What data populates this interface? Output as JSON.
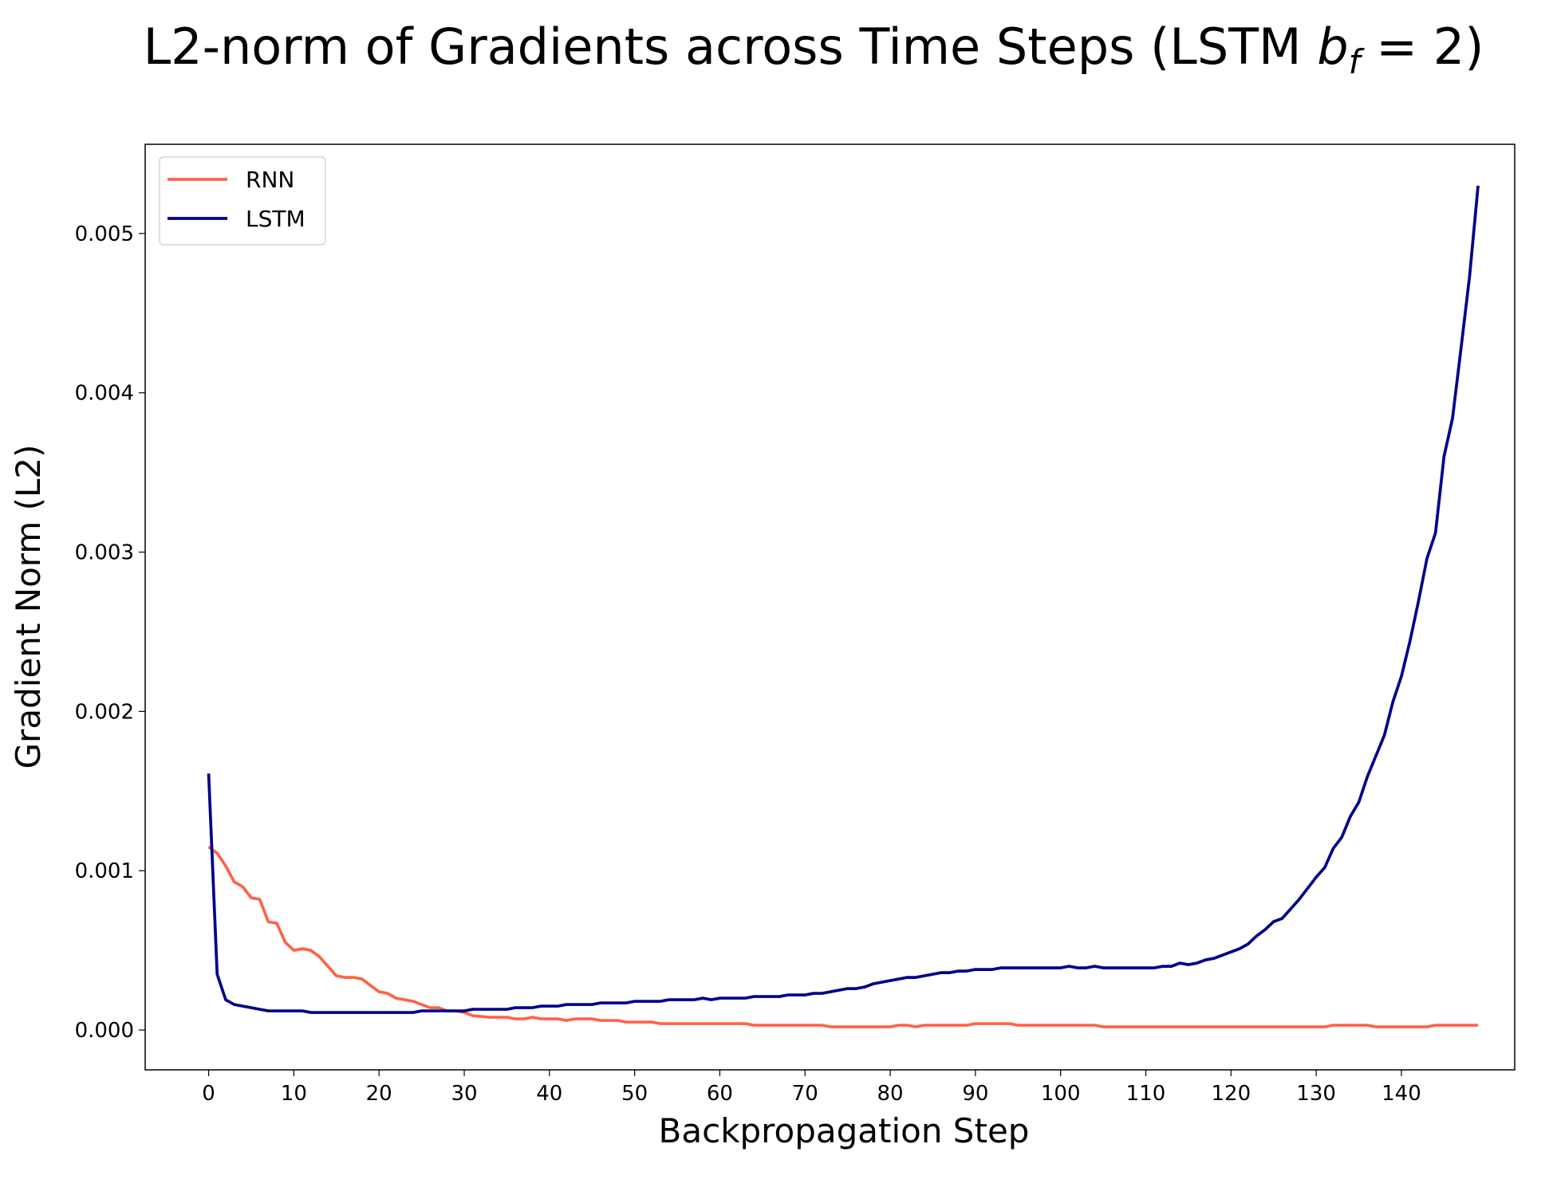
{
  "chart_data": {
    "type": "line",
    "title": [
      "L2-norm of Gradients across Time Steps (LSTM ",
      "b",
      "f",
      " = 2)"
    ],
    "x_label": "Backpropagation Step",
    "y_label": "Gradient Norm (L2)",
    "x": [
      0,
      1,
      2,
      3,
      4,
      5,
      6,
      7,
      8,
      9,
      10,
      11,
      12,
      13,
      14,
      15,
      16,
      17,
      18,
      19,
      20,
      21,
      22,
      23,
      24,
      25,
      26,
      27,
      28,
      29,
      30,
      31,
      32,
      33,
      34,
      35,
      36,
      37,
      38,
      39,
      40,
      41,
      42,
      43,
      44,
      45,
      46,
      47,
      48,
      49,
      50,
      51,
      52,
      53,
      54,
      55,
      56,
      57,
      58,
      59,
      60,
      61,
      62,
      63,
      64,
      65,
      66,
      67,
      68,
      69,
      70,
      71,
      72,
      73,
      74,
      75,
      76,
      77,
      78,
      79,
      80,
      81,
      82,
      83,
      84,
      85,
      86,
      87,
      88,
      89,
      90,
      91,
      92,
      93,
      94,
      95,
      96,
      97,
      98,
      99,
      100,
      101,
      102,
      103,
      104,
      105,
      106,
      107,
      108,
      109,
      110,
      111,
      112,
      113,
      114,
      115,
      116,
      117,
      118,
      119,
      120,
      121,
      122,
      123,
      124,
      125,
      126,
      127,
      128,
      129,
      130,
      131,
      132,
      133,
      134,
      135,
      136,
      137,
      138,
      139,
      140,
      141,
      142,
      143,
      144,
      145,
      146,
      147,
      148,
      149
    ],
    "series": [
      {
        "name": "RNN",
        "color": "#ff6347",
        "values": [
          0.00115,
          0.00111,
          0.00103,
          0.00093,
          0.0009,
          0.00083,
          0.00082,
          0.00068,
          0.00067,
          0.00055,
          0.0005,
          0.00051,
          0.0005,
          0.00046,
          0.0004,
          0.00034,
          0.00033,
          0.00033,
          0.00032,
          0.00028,
          0.00024,
          0.00023,
          0.0002,
          0.00019,
          0.00018,
          0.00016,
          0.00014,
          0.00014,
          0.00012,
          0.00012,
          0.00011,
          9e-05,
          8.5e-05,
          8e-05,
          8e-05,
          8e-05,
          7e-05,
          7e-05,
          8e-05,
          7e-05,
          7e-05,
          7e-05,
          6e-05,
          7e-05,
          7e-05,
          7e-05,
          6e-05,
          6e-05,
          6e-05,
          5e-05,
          5e-05,
          5e-05,
          5e-05,
          4e-05,
          4e-05,
          4e-05,
          4e-05,
          4e-05,
          4e-05,
          4e-05,
          4e-05,
          4e-05,
          4e-05,
          4e-05,
          3e-05,
          3e-05,
          3e-05,
          3e-05,
          3e-05,
          3e-05,
          3e-05,
          3e-05,
          3e-05,
          2e-05,
          2e-05,
          2e-05,
          2e-05,
          2e-05,
          2e-05,
          2e-05,
          2e-05,
          3e-05,
          3e-05,
          2e-05,
          3e-05,
          3e-05,
          3e-05,
          3e-05,
          3e-05,
          3e-05,
          4e-05,
          4e-05,
          4e-05,
          4e-05,
          4e-05,
          3e-05,
          3e-05,
          3e-05,
          3e-05,
          3e-05,
          3e-05,
          3e-05,
          3e-05,
          3e-05,
          3e-05,
          2e-05,
          2e-05,
          2e-05,
          2e-05,
          2e-05,
          2e-05,
          2e-05,
          2e-05,
          2e-05,
          2e-05,
          2e-05,
          2e-05,
          2e-05,
          2e-05,
          2e-05,
          2e-05,
          2e-05,
          2e-05,
          2e-05,
          2e-05,
          2e-05,
          2e-05,
          2e-05,
          2e-05,
          2e-05,
          2e-05,
          2e-05,
          3e-05,
          3e-05,
          3e-05,
          3e-05,
          3e-05,
          2e-05,
          2e-05,
          2e-05,
          2e-05,
          2e-05,
          2e-05,
          2e-05,
          3e-05,
          3e-05,
          3e-05,
          3e-05,
          3e-05,
          3e-05
        ]
      },
      {
        "name": "LSTM",
        "color": "#00008b",
        "values": [
          0.00161,
          0.00035,
          0.00019,
          0.00016,
          0.00015,
          0.00014,
          0.00013,
          0.00012,
          0.00012,
          0.00012,
          0.00012,
          0.00012,
          0.00011,
          0.00011,
          0.00011,
          0.00011,
          0.00011,
          0.00011,
          0.00011,
          0.00011,
          0.00011,
          0.00011,
          0.00011,
          0.00011,
          0.00011,
          0.00012,
          0.00012,
          0.00012,
          0.00012,
          0.00012,
          0.00012,
          0.00013,
          0.00013,
          0.00013,
          0.00013,
          0.00013,
          0.00014,
          0.00014,
          0.00014,
          0.00015,
          0.00015,
          0.00015,
          0.00016,
          0.00016,
          0.00016,
          0.00016,
          0.00017,
          0.00017,
          0.00017,
          0.00017,
          0.00018,
          0.00018,
          0.00018,
          0.00018,
          0.00019,
          0.00019,
          0.00019,
          0.00019,
          0.0002,
          0.00019,
          0.0002,
          0.0002,
          0.0002,
          0.0002,
          0.00021,
          0.00021,
          0.00021,
          0.00021,
          0.00022,
          0.00022,
          0.00022,
          0.00023,
          0.00023,
          0.00024,
          0.00025,
          0.00026,
          0.00026,
          0.00027,
          0.00029,
          0.0003,
          0.00031,
          0.00032,
          0.00033,
          0.00033,
          0.00034,
          0.00035,
          0.00036,
          0.00036,
          0.00037,
          0.00037,
          0.00038,
          0.00038,
          0.00038,
          0.00039,
          0.00039,
          0.00039,
          0.00039,
          0.00039,
          0.00039,
          0.00039,
          0.00039,
          0.0004,
          0.00039,
          0.00039,
          0.0004,
          0.00039,
          0.00039,
          0.00039,
          0.00039,
          0.00039,
          0.00039,
          0.00039,
          0.0004,
          0.0004,
          0.00042,
          0.00041,
          0.00042,
          0.00044,
          0.00045,
          0.00047,
          0.00049,
          0.00051,
          0.00054,
          0.00059,
          0.00063,
          0.00068,
          0.0007,
          0.00076,
          0.00082,
          0.00089,
          0.00096,
          0.00102,
          0.00114,
          0.00121,
          0.00134,
          0.00143,
          0.00159,
          0.00172,
          0.00185,
          0.00206,
          0.00222,
          0.00244,
          0.00269,
          0.00296,
          0.00312,
          0.0036,
          0.00384,
          0.00428,
          0.00473,
          0.0053
        ]
      }
    ],
    "xlim": [
      -7.45,
      153.3
    ],
    "ylim": [
      -0.00025,
      0.00556
    ],
    "xticks": [
      0,
      10,
      20,
      30,
      40,
      50,
      60,
      70,
      80,
      90,
      100,
      110,
      120,
      130,
      140
    ],
    "yticks": [
      {
        "value": 0,
        "label": "0.000"
      },
      {
        "value": 0.001,
        "label": "0.001"
      },
      {
        "value": 0.002,
        "label": "0.002"
      },
      {
        "value": 0.003,
        "label": "0.003"
      },
      {
        "value": 0.004,
        "label": "0.004"
      },
      {
        "value": 0.005,
        "label": "0.005"
      }
    ],
    "legend": "upper left",
    "grid": false
  }
}
